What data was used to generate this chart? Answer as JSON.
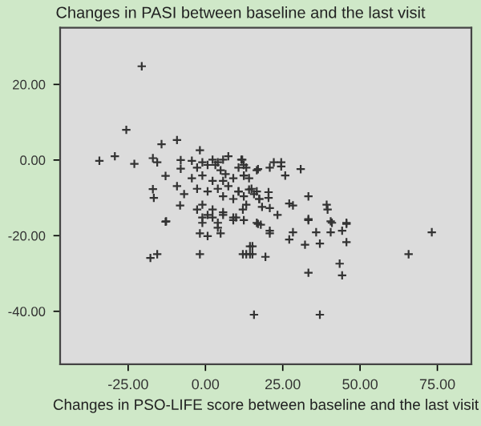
{
  "chart_data": {
    "type": "scatter",
    "title": "Changes in PASI between baseline and the last visit",
    "xlabel": "Changes in PSO-LIFE score between baseline and the last visit",
    "marker": "cross",
    "grid": false,
    "legend": false,
    "xlim": [
      -47,
      86
    ],
    "ylim": [
      -54,
      35
    ],
    "xticks": [
      {
        "value": -25,
        "label": "-25.00"
      },
      {
        "value": 0,
        "label": "0.00"
      },
      {
        "value": 25,
        "label": "25.00"
      },
      {
        "value": 50,
        "label": "50.00"
      },
      {
        "value": 75,
        "label": "75.00"
      }
    ],
    "yticks": [
      {
        "value": -40,
        "label": "-40.00"
      },
      {
        "value": -20,
        "label": "-20.00"
      },
      {
        "value": 0,
        "label": "0.00"
      },
      {
        "value": 20,
        "label": "20.00"
      }
    ],
    "series": [
      {
        "color": "#333333",
        "x": [
          -20.6,
          -25.6,
          -34.3,
          -29.3,
          -23,
          -14.2,
          -9.2,
          -17,
          -15.6,
          -12.9,
          -17,
          -16.7,
          -9.2,
          -8.2,
          -12.9,
          -6.9,
          -8,
          -8,
          -1.8,
          -4.4,
          -1.0,
          0.7,
          -2.7,
          2.3,
          3.2,
          4.0,
          5.7,
          7.4,
          4.9,
          6.5,
          12.4,
          11.6,
          16.6,
          -4.4,
          -1.0,
          2.3,
          5.7,
          9.0,
          12.4,
          -2.7,
          0.7,
          4.0,
          7.4,
          10.7,
          14.1,
          15.7,
          17.4,
          13.2,
          9.0,
          5.7,
          -1.0,
          2.3,
          -2.7,
          0.7,
          5.7,
          9.0,
          12.4,
          4.0,
          -1.0,
          11.9,
          10.7,
          13.2,
          17,
          20.8,
          22.1,
          24.5,
          24.5,
          25.8,
          30.8,
          12.4,
          14.1,
          10.7,
          14.9,
          16.6,
          12.4,
          17.4,
          20.4,
          20.4,
          18.3,
          20.8,
          12.1,
          23.3,
          27.1,
          28.3,
          33.3,
          39.2,
          39.5,
          33.3,
          40.9,
          45.6,
          16.6,
          17,
          33.3,
          40.5,
          45.6,
          28.3,
          27.1,
          32.2,
          35.8,
          37,
          40.5,
          44.2,
          45.6,
          20.8,
          20.8,
          14.4,
          14.4,
          12.1,
          19.4,
          33.3,
          43.4,
          44.2,
          65.7,
          73.2,
          15.7,
          37,
          -12.7,
          -17.8,
          -15.6,
          -1.8,
          0.7,
          -1.8,
          4,
          4.9,
          9,
          9.9,
          13.2,
          15.2,
          15.2,
          17.9,
          2.3,
          -1,
          5.7
        ],
        "values": [
          24.8,
          8,
          -0.2,
          1,
          -1,
          4.2,
          5.3,
          0.5,
          -0.6,
          -4.2,
          -7.7,
          -10,
          -6.9,
          -12,
          -16.3,
          -9,
          -2.3,
          0,
          2.6,
          -0.2,
          -0.6,
          -1.3,
          -2.0,
          0.1,
          -1.3,
          -0.6,
          0.1,
          1.0,
          -2.7,
          -3.7,
          -1.3,
          0.1,
          -2.7,
          -4.8,
          -4.1,
          -5.5,
          -5.5,
          -4.8,
          -4.1,
          -7.6,
          -8.3,
          -7.6,
          -6.9,
          -8.3,
          -7.8,
          -9.0,
          -10.3,
          -11.8,
          -10.3,
          -9.6,
          -11.8,
          -13.1,
          -13.1,
          -14.5,
          -13.8,
          -15.2,
          -15.9,
          -16.6,
          -16.6,
          0.1,
          -2,
          -2,
          -2.4,
          -2,
          -0.6,
          -0.6,
          -1.7,
          -4.1,
          -2.4,
          -4.1,
          -4.8,
          -8.3,
          -7.6,
          -8.3,
          -9.6,
          -10.3,
          -8.5,
          -10,
          -12.4,
          -12.7,
          -13.1,
          -14.5,
          -11.5,
          -12,
          -9.6,
          -11.8,
          -13.1,
          -15.9,
          -16.6,
          -16.6,
          -16.6,
          -16.9,
          -15.6,
          -16.2,
          -16.9,
          -19.1,
          -21,
          -22.4,
          -19.1,
          -22.1,
          -19.1,
          -18.7,
          -21.7,
          -18.7,
          -19.4,
          -22.8,
          -24.9,
          -24.9,
          -25.6,
          -29.8,
          -27.4,
          -30.5,
          -24.9,
          -19.1,
          -40.9,
          -40.9,
          -16.2,
          -25.9,
          -24.9,
          -19.4,
          -20.1,
          -24.9,
          -17.9,
          -19.4,
          -15.9,
          -15.2,
          -24.9,
          -22.8,
          -24.9,
          -17.1,
          -15.2,
          -15.2,
          -14.5
        ]
      }
    ]
  }
}
